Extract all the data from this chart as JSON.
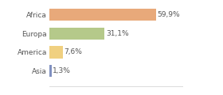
{
  "categories": [
    "Africa",
    "Europa",
    "America",
    "Asia"
  ],
  "values": [
    59.9,
    31.1,
    7.6,
    1.3
  ],
  "labels": [
    "59,9%",
    "31,1%",
    "7,6%",
    "1,3%"
  ],
  "bar_colors": [
    "#e8a97a",
    "#b5c98a",
    "#f0d080",
    "#8090c0"
  ],
  "background_color": "#ffffff",
  "xlim": [
    0,
    75
  ],
  "label_fontsize": 6.5,
  "category_fontsize": 6.5,
  "bar_height": 0.65
}
